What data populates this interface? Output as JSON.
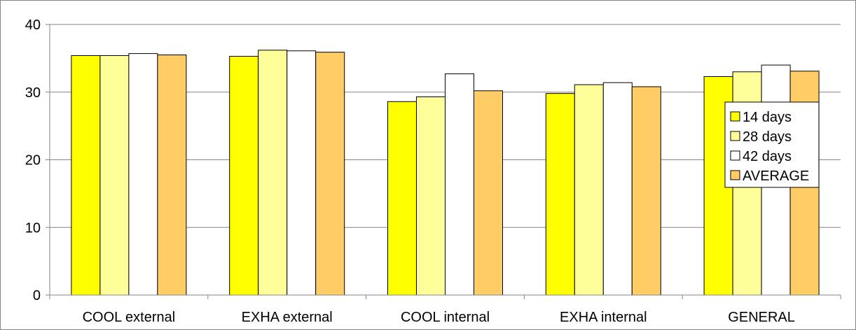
{
  "chart_data": {
    "type": "bar",
    "categories": [
      "COOL external",
      "EXHA external",
      "COOL internal",
      "EXHA internal",
      "GENERAL"
    ],
    "series": [
      {
        "name": "14 days",
        "values": [
          35.4,
          35.3,
          28.6,
          29.8,
          32.3
        ],
        "color": "#FFFF00"
      },
      {
        "name": "28 days",
        "values": [
          35.4,
          36.2,
          29.3,
          31.1,
          33.0
        ],
        "color": "#FFFF99"
      },
      {
        "name": "42 days",
        "values": [
          35.7,
          36.1,
          32.7,
          31.4,
          34.0
        ],
        "color": "#FFFFFF"
      },
      {
        "name": "AVERAGE",
        "values": [
          35.5,
          35.9,
          30.2,
          30.8,
          33.1
        ],
        "color": "#FFCC66"
      }
    ],
    "ylim": [
      0,
      40
    ],
    "yticks": [
      "0",
      "10",
      "20",
      "30",
      "40"
    ],
    "grid": true,
    "legend_position": "right"
  }
}
